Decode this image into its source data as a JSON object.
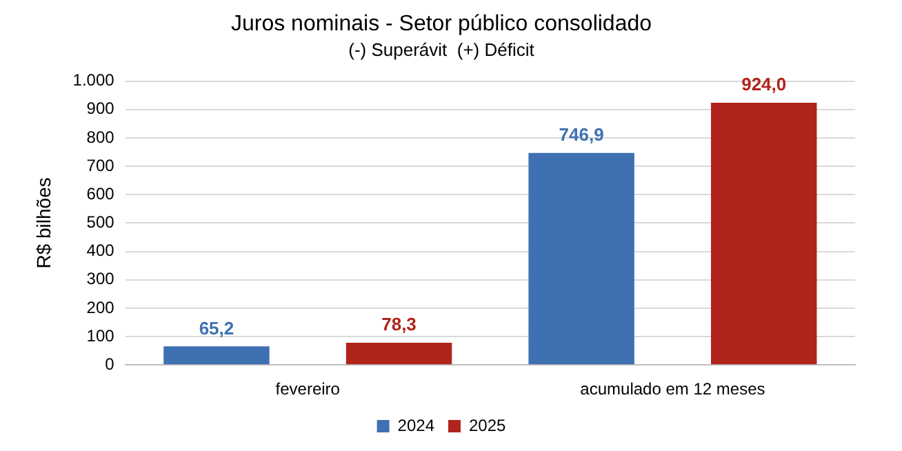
{
  "chart_data": {
    "type": "bar",
    "title": "Juros nominais - Setor público consolidado",
    "subtitle": "(-) Superávit  (+) Déficit",
    "ylabel": "R$ bilhões",
    "categories": [
      "fevereiro",
      "acumulado em 12 meses"
    ],
    "series": [
      {
        "name": "2024",
        "color": "#3f70b2",
        "values": [
          65.2,
          746.9
        ],
        "value_labels": [
          "65,2",
          "746,9"
        ]
      },
      {
        "name": "2025",
        "color": "#b0241b",
        "values": [
          78.3,
          924.0
        ],
        "value_labels": [
          "78,3",
          "924,0"
        ]
      }
    ],
    "ylim": [
      0,
      1000
    ],
    "yticks": [
      0,
      100,
      200,
      300,
      400,
      500,
      600,
      700,
      800,
      900,
      {
        "value": 1000,
        "label": "1.000"
      }
    ],
    "grid": "y",
    "legend": "bottom"
  }
}
